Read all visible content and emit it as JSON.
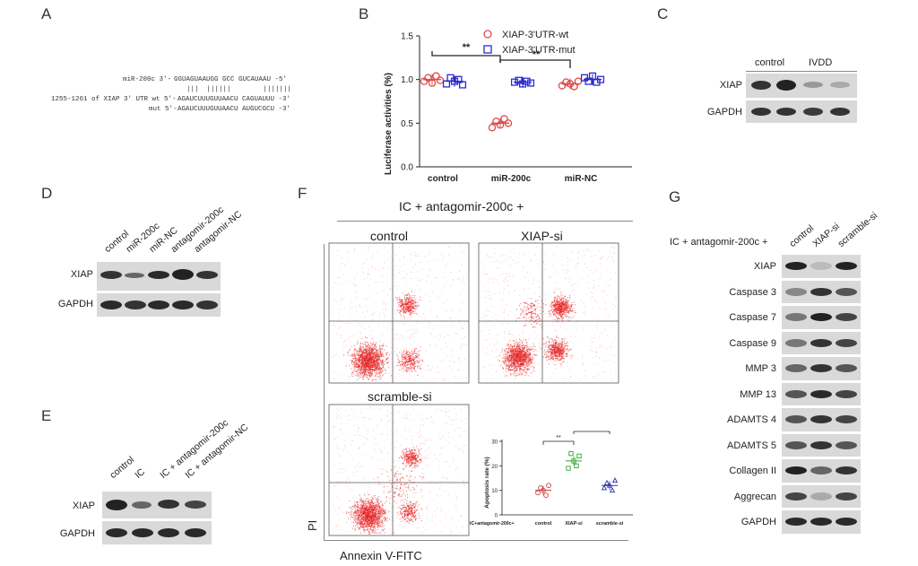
{
  "panels": {
    "A": "A",
    "B": "B",
    "C": "C",
    "D": "D",
    "E": "E",
    "F": "F",
    "G": "G"
  },
  "panelA": {
    "line1_label": "miR-200c 3'-",
    "line1_seq": "GGUAGUAAUGG GCC GUCAUAAU -5'",
    "pairs": "|||  ||||||        |||||||",
    "line2_label": "1255-1261 of XIAP 3' UTR wt 5'-",
    "line2_seq": "AGAUCUUUGUUAACU CAGUAUUU -3'",
    "line3_label": "mut 5'-",
    "line3_seq": "AGAUCUUUGUUAACU AUGUCGCU -3'"
  },
  "panelB": {
    "legend_wt": "XIAP-3'UTR-wt",
    "legend_mut": "XIAP-3'UTR-mut",
    "sig1": "**",
    "sig2": "**",
    "wt_color": "#e04a4a",
    "mut_color": "#2b2bd0"
  },
  "chart_data": [
    {
      "type": "scatter",
      "ylabel": "Luciferase activities (%)",
      "categories": [
        "control",
        "miR-200c",
        "miR-NC"
      ],
      "yticks": [
        "0.0",
        "0.5",
        "1.0",
        "1.5"
      ],
      "ylim": [
        0,
        1.5
      ],
      "series": [
        {
          "name": "XIAP-3'UTR-wt",
          "means": [
            1.0,
            0.5,
            0.95
          ],
          "points": [
            [
              0.98,
              1.02,
              0.96,
              1.04,
              0.99
            ],
            [
              0.45,
              0.52,
              0.48,
              0.55,
              0.5
            ],
            [
              0.93,
              0.97,
              0.95,
              0.92,
              0.98
            ]
          ]
        },
        {
          "name": "XIAP-3'UTR-mut",
          "means": [
            0.98,
            0.97,
            1.0
          ],
          "points": [
            [
              0.95,
              1.02,
              0.98,
              1.0,
              0.94
            ],
            [
              0.97,
              0.99,
              0.95,
              0.98,
              0.96
            ],
            [
              1.02,
              0.98,
              1.04,
              0.97,
              1.0
            ]
          ]
        }
      ],
      "significance": [
        [
          "control",
          "miR-200c",
          "**"
        ],
        [
          "miR-200c",
          "miR-NC",
          "**"
        ]
      ]
    },
    {
      "type": "scatter",
      "ylabel": "Apoptosis rate (%)",
      "xprefix": "IC+antagomir-200c+",
      "categories": [
        "control",
        "XIAP-si",
        "scramble-si"
      ],
      "yticks": [
        "0",
        "10",
        "20",
        "30"
      ],
      "ylim": [
        0,
        30
      ],
      "series": [
        {
          "name": "",
          "means": [
            10,
            22,
            12
          ],
          "points": [
            [
              9,
              11,
              10,
              8,
              12
            ],
            [
              19,
              25,
              22,
              20,
              24
            ],
            [
              11,
              13,
              12,
              10,
              14
            ]
          ]
        }
      ],
      "colors": [
        "#c43c3c",
        "#2fa62f",
        "#2b2bb0"
      ],
      "significance": [
        [
          "control",
          "XIAP-si",
          "**"
        ],
        [
          "XIAP-si",
          "scramble-si",
          "**"
        ]
      ]
    }
  ],
  "panelC": {
    "lanes": [
      "control",
      "IVDD"
    ],
    "rows": [
      "XIAP",
      "GAPDH"
    ]
  },
  "panelD": {
    "lanes": [
      "control",
      "miR-200c",
      "miR-NC",
      "antagomir-200c",
      "antagomir-NC"
    ],
    "rows": [
      "XIAP",
      "GAPDH"
    ]
  },
  "panelE": {
    "lanes": [
      "control",
      "IC",
      "IC + antagomir-200c",
      "IC + antagomir-NC"
    ],
    "rows": [
      "XIAP",
      "GAPDH"
    ]
  },
  "panelF": {
    "title": "IC + antagomir-200c +",
    "plots": [
      "control",
      "XIAP-si",
      "scramble-si"
    ],
    "ylabel": "PI",
    "xlabel": "Annexin V-FITC"
  },
  "panelG": {
    "prefix": "IC + antagomir-200c +",
    "lanes": [
      "control",
      "XIAP-si",
      "scramble-si"
    ],
    "rows": [
      "XIAP",
      "Caspase 3",
      "Caspase 7",
      "Caspase 9",
      "MMP 3",
      "MMP 13",
      "ADAMTS 4",
      "ADAMTS 5",
      "Collagen II",
      "Aggrecan",
      "GAPDH"
    ]
  }
}
